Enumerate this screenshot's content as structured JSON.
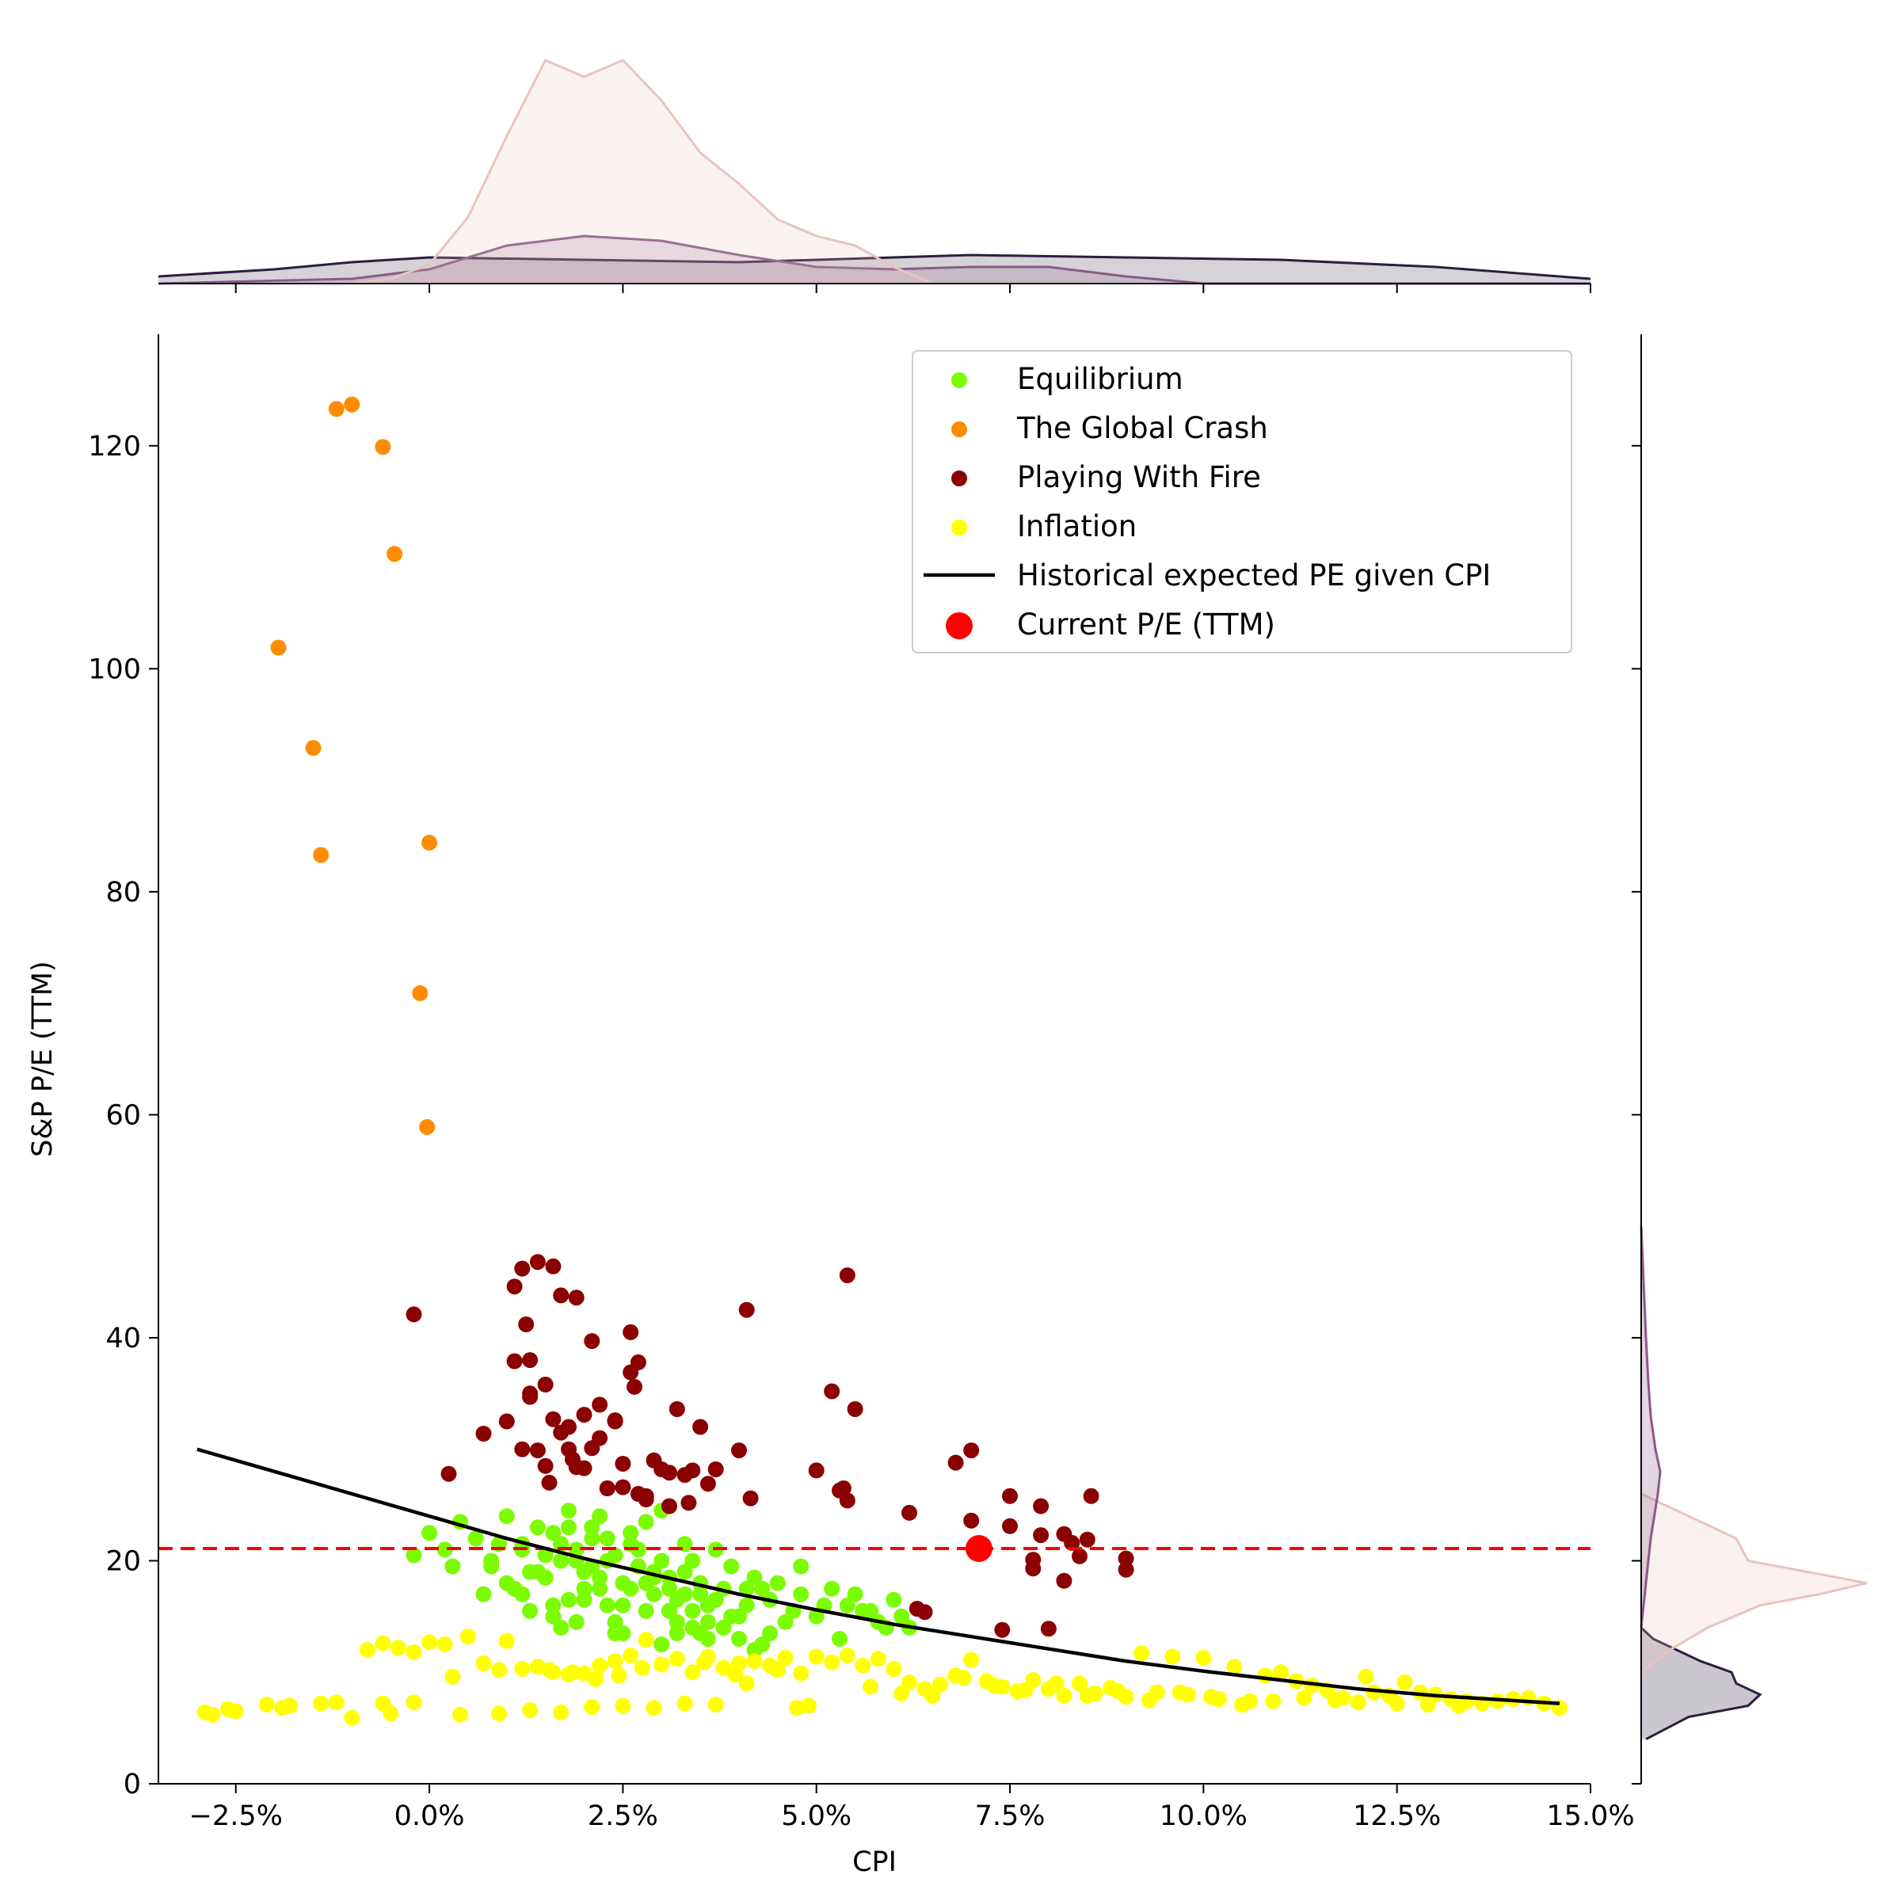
{
  "chart_data": {
    "type": "scatter",
    "xlabel": "CPI",
    "ylabel": "S&P P/E (TTM)",
    "xlim": [
      -0.035,
      0.15
    ],
    "ylim": [
      0,
      130
    ],
    "x_ticks": [
      -0.025,
      0.0,
      0.025,
      0.05,
      0.075,
      0.1,
      0.125,
      0.15
    ],
    "x_tick_labels": [
      "−2.5%",
      "0.0%",
      "2.5%",
      "5.0%",
      "7.5%",
      "10.0%",
      "12.5%",
      "15.0%"
    ],
    "y_ticks": [
      0,
      20,
      40,
      60,
      80,
      100,
      120
    ],
    "y_tick_labels": [
      "0",
      "20",
      "40",
      "60",
      "80",
      "100",
      "120"
    ],
    "legend_position": "top-right",
    "current_pe": {
      "label": "Current P/E (TTM)",
      "cpi": 0.071,
      "pe": 21.1,
      "color": "#ff0000"
    },
    "expected_curve": {
      "label": "Historical expected PE given CPI",
      "color": "#000000",
      "x": [
        -0.03,
        -0.02,
        -0.01,
        0.0,
        0.01,
        0.02,
        0.03,
        0.04,
        0.05,
        0.06,
        0.07,
        0.08,
        0.09,
        0.1,
        0.11,
        0.12,
        0.13,
        0.146
      ],
      "y": [
        30.0,
        28.0,
        26.0,
        24.0,
        22.0,
        20.2,
        18.6,
        17.0,
        15.6,
        14.3,
        13.2,
        12.1,
        11.0,
        10.1,
        9.3,
        8.5,
        7.9,
        7.2
      ]
    },
    "series": [
      {
        "name": "Equilibrium",
        "color": "#7cfc00",
        "x": [
          0.0,
          0.002,
          0.004,
          0.006,
          0.008,
          0.01,
          0.012,
          0.014,
          0.015,
          0.016,
          0.017,
          0.018,
          0.019,
          0.02,
          0.021,
          0.022,
          0.023,
          0.024,
          0.025,
          0.026,
          0.027,
          0.028,
          0.029,
          0.03,
          0.031,
          0.032,
          0.033,
          0.034,
          0.035,
          0.036,
          0.038,
          0.04,
          0.042,
          0.044,
          0.046,
          0.048,
          0.05,
          0.052,
          0.054,
          0.056,
          0.058,
          0.06,
          0.062,
          0.012,
          0.015,
          0.018,
          0.022,
          0.025,
          0.028,
          0.032,
          0.035,
          0.038,
          0.041,
          0.044,
          0.047,
          0.014,
          0.017,
          0.02,
          0.023,
          0.026,
          0.029,
          0.031,
          0.034,
          0.037,
          0.04,
          0.043,
          0.01,
          0.013,
          0.016,
          0.019,
          0.021,
          0.024,
          0.027,
          0.03,
          0.033,
          0.036,
          0.039,
          0.042,
          0.045,
          -0.002,
          0.003,
          0.007,
          0.009,
          0.011,
          0.013,
          0.016,
          0.018,
          0.02,
          0.022,
          0.024,
          0.026,
          0.028,
          0.03,
          0.032,
          0.034,
          0.036,
          0.048,
          0.051,
          0.053,
          0.055,
          0.057,
          0.059,
          0.061,
          0.015,
          0.019,
          0.023,
          0.027,
          0.031,
          0.035,
          0.039,
          0.043,
          0.008,
          0.012,
          0.017,
          0.021,
          0.025,
          0.029,
          0.033,
          0.037,
          0.041
        ],
        "y": [
          22.5,
          21.0,
          23.5,
          22.0,
          19.5,
          24.0,
          21.5,
          23.0,
          18.5,
          22.5,
          20.0,
          24.5,
          21.0,
          19.0,
          23.0,
          17.5,
          22.0,
          20.5,
          18.0,
          21.5,
          19.5,
          23.5,
          17.0,
          20.0,
          18.5,
          16.5,
          19.0,
          15.5,
          18.0,
          16.0,
          17.5,
          15.0,
          18.5,
          16.5,
          14.5,
          17.0,
          15.0,
          17.5,
          16.0,
          15.5,
          14.5,
          16.5,
          14.0,
          17.0,
          20.5,
          16.5,
          18.5,
          16.0,
          18.0,
          14.5,
          17.0,
          14.0,
          16.0,
          13.5,
          15.5,
          19.0,
          21.5,
          17.5,
          20.0,
          17.5,
          19.0,
          15.5,
          14.0,
          16.5,
          13.0,
          17.5,
          18.0,
          15.5,
          16.0,
          14.5,
          22.0,
          13.5,
          21.0,
          12.5,
          21.5,
          13.0,
          19.5,
          12.0,
          18.0,
          20.5,
          19.5,
          17.0,
          21.5,
          17.5,
          19.0,
          15.0,
          23.0,
          16.5,
          24.0,
          14.5,
          22.5,
          15.5,
          24.5,
          13.5,
          20.0,
          14.5,
          19.5,
          16.0,
          13.0,
          17.0,
          15.5,
          14.0,
          15.0,
          18.5,
          20.0,
          16.0,
          19.5,
          17.5,
          13.5,
          15.0,
          12.5,
          20.0,
          21.0,
          14.0,
          19.5,
          13.5,
          18.5,
          17.0,
          21.0,
          17.5
        ]
      },
      {
        "name": "The Global Crash",
        "color": "#ff8c00",
        "x": [
          -0.012,
          -0.01,
          -0.006,
          -0.0045,
          -0.0195,
          -0.015,
          -0.014,
          0.0,
          -0.0012,
          -0.0003
        ],
        "y": [
          123.3,
          123.7,
          119.9,
          110.3,
          101.9,
          92.9,
          83.3,
          84.4,
          70.9,
          58.9
        ]
      },
      {
        "name": "Playing With Fire",
        "color": "#8b0000",
        "x": [
          -0.002,
          0.0025,
          0.007,
          0.01,
          0.011,
          0.012,
          0.013,
          0.013,
          0.014,
          0.015,
          0.016,
          0.017,
          0.018,
          0.019,
          0.02,
          0.021,
          0.022,
          0.023,
          0.024,
          0.025,
          0.026,
          0.026,
          0.027,
          0.028,
          0.03,
          0.031,
          0.032,
          0.033,
          0.035,
          0.036,
          0.037,
          0.04,
          0.041,
          0.0415,
          0.05,
          0.052,
          0.053,
          0.054,
          0.055,
          0.062,
          0.063,
          0.064,
          0.068,
          0.07,
          0.07,
          0.074,
          0.075,
          0.075,
          0.078,
          0.078,
          0.079,
          0.079,
          0.08,
          0.082,
          0.082,
          0.083,
          0.084,
          0.085,
          0.0855,
          0.09,
          0.09,
          0.012,
          0.014,
          0.016,
          0.018,
          0.02,
          0.022,
          0.024,
          0.027,
          0.029,
          0.031,
          0.034,
          0.011,
          0.013,
          0.015,
          0.017,
          0.019,
          0.021,
          0.023,
          0.025,
          0.028,
          0.0125,
          0.0155,
          0.0185,
          0.0265,
          0.0335,
          0.0535,
          0.054
        ],
        "y": [
          42.1,
          27.8,
          31.4,
          32.5,
          44.6,
          46.2,
          38.0,
          34.7,
          46.8,
          28.5,
          46.4,
          43.8,
          32.0,
          43.6,
          33.1,
          39.7,
          31.0,
          26.5,
          32.5,
          28.7,
          40.5,
          36.9,
          37.8,
          25.8,
          28.2,
          24.9,
          33.6,
          27.7,
          32.0,
          26.9,
          28.2,
          29.9,
          42.5,
          25.6,
          28.1,
          35.2,
          26.3,
          45.6,
          33.6,
          24.3,
          15.7,
          15.4,
          28.8,
          29.9,
          23.6,
          13.8,
          25.8,
          23.1,
          20.1,
          19.3,
          24.9,
          22.3,
          13.9,
          22.4,
          18.2,
          21.6,
          20.4,
          21.9,
          25.8,
          20.2,
          19.2,
          30.0,
          29.9,
          32.7,
          30.0,
          28.3,
          34.0,
          32.6,
          26.0,
          29.0,
          27.9,
          28.1,
          37.9,
          35.0,
          35.8,
          31.5,
          28.4,
          30.1,
          26.5,
          26.6,
          25.5,
          41.2,
          27.0,
          29.1,
          35.6,
          25.2,
          26.5,
          25.4
        ]
      },
      {
        "name": "Inflation",
        "color": "#ffff00",
        "x": [
          -0.029,
          -0.028,
          -0.026,
          -0.025,
          -0.021,
          -0.019,
          -0.018,
          -0.014,
          -0.012,
          -0.01,
          -0.006,
          -0.005,
          -0.002,
          -0.008,
          -0.006,
          -0.004,
          -0.002,
          0.0,
          0.002,
          0.003,
          0.005,
          0.007,
          0.009,
          0.01,
          0.012,
          0.014,
          0.016,
          0.018,
          0.02,
          0.022,
          0.024,
          0.026,
          0.028,
          0.03,
          0.032,
          0.034,
          0.036,
          0.038,
          0.04,
          0.042,
          0.044,
          0.046,
          0.048,
          0.05,
          0.052,
          0.054,
          0.056,
          0.058,
          0.06,
          0.062,
          0.064,
          0.066,
          0.068,
          0.07,
          0.072,
          0.074,
          0.076,
          0.078,
          0.08,
          0.082,
          0.084,
          0.086,
          0.088,
          0.09,
          0.092,
          0.094,
          0.096,
          0.098,
          0.1,
          0.102,
          0.104,
          0.106,
          0.108,
          0.11,
          0.112,
          0.114,
          0.116,
          0.118,
          0.12,
          0.122,
          0.124,
          0.126,
          0.128,
          0.13,
          0.132,
          0.134,
          0.136,
          0.138,
          0.14,
          0.142,
          0.144,
          0.146,
          0.004,
          0.009,
          0.013,
          0.017,
          0.021,
          0.025,
          0.029,
          0.033,
          0.037,
          0.041,
          0.045,
          0.049,
          0.057,
          0.061,
          0.065,
          0.069,
          0.073,
          0.077,
          0.081,
          0.085,
          0.089,
          0.093,
          0.097,
          0.101,
          0.105,
          0.109,
          0.113,
          0.117,
          0.121,
          0.125,
          0.129,
          0.133,
          0.0155,
          0.0185,
          0.0215,
          0.0245,
          0.0275,
          0.0355,
          0.0475,
          0.0395
        ],
        "y": [
          6.4,
          6.2,
          6.7,
          6.5,
          7.1,
          6.8,
          7.0,
          7.2,
          7.3,
          5.9,
          7.2,
          6.3,
          7.3,
          12.0,
          12.6,
          12.2,
          11.8,
          12.7,
          12.5,
          9.6,
          13.2,
          10.8,
          10.2,
          12.8,
          10.3,
          10.5,
          10.0,
          9.8,
          9.9,
          10.6,
          11.0,
          11.5,
          12.9,
          10.7,
          11.2,
          10.0,
          11.4,
          10.4,
          10.8,
          11.0,
          10.6,
          11.3,
          9.9,
          11.4,
          10.9,
          11.5,
          10.6,
          11.2,
          10.3,
          9.1,
          8.5,
          8.9,
          9.7,
          11.1,
          9.2,
          8.7,
          8.3,
          9.3,
          8.5,
          7.9,
          9.0,
          8.1,
          8.6,
          7.8,
          11.7,
          8.2,
          11.4,
          8.0,
          11.3,
          7.6,
          10.5,
          7.4,
          9.7,
          10.0,
          9.2,
          8.8,
          8.4,
          7.7,
          7.3,
          8.2,
          7.9,
          9.1,
          8.2,
          8.0,
          7.6,
          7.4,
          7.2,
          7.4,
          7.6,
          7.7,
          7.2,
          6.8,
          6.2,
          6.3,
          6.6,
          6.4,
          6.9,
          7.0,
          6.8,
          7.2,
          7.1,
          9.0,
          10.2,
          7.0,
          8.7,
          8.1,
          7.9,
          9.5,
          8.8,
          8.4,
          9.0,
          7.9,
          8.3,
          7.5,
          8.2,
          7.8,
          7.1,
          7.4,
          7.7,
          7.5,
          9.6,
          7.2,
          7.1,
          7.0,
          10.2,
          10.0,
          9.4,
          9.7,
          10.4,
          10.9,
          6.8,
          9.8
        ]
      }
    ],
    "marginal_top": {
      "series": [
        {
          "name": "The Global Crash",
          "color": "#2d1e3e",
          "x": [
            -0.035,
            -0.02,
            -0.01,
            0.0,
            0.02,
            0.04,
            0.06,
            0.07,
            0.09,
            0.11,
            0.13,
            0.15
          ],
          "density": [
            0.03,
            0.06,
            0.09,
            0.11,
            0.1,
            0.09,
            0.11,
            0.12,
            0.11,
            0.1,
            0.07,
            0.02
          ]
        },
        {
          "name": "Playing With Fire",
          "color": "#8a5a87",
          "x": [
            -0.035,
            -0.01,
            0.0,
            0.01,
            0.02,
            0.03,
            0.04,
            0.05,
            0.06,
            0.07,
            0.08,
            0.09,
            0.1,
            0.15
          ],
          "density": [
            0.0,
            0.02,
            0.06,
            0.16,
            0.2,
            0.18,
            0.12,
            0.07,
            0.06,
            0.07,
            0.07,
            0.03,
            0.0,
            0.0
          ]
        },
        {
          "name": "Equilibrium",
          "color": "#e8c4c0",
          "x": [
            -0.01,
            -0.005,
            0.0,
            0.005,
            0.01,
            0.015,
            0.02,
            0.025,
            0.03,
            0.035,
            0.04,
            0.045,
            0.05,
            0.055,
            0.06,
            0.065
          ],
          "density": [
            0.0,
            0.02,
            0.08,
            0.28,
            0.62,
            0.94,
            0.87,
            0.94,
            0.77,
            0.55,
            0.42,
            0.27,
            0.2,
            0.16,
            0.07,
            0.0
          ]
        }
      ]
    },
    "marginal_right": {
      "series": [
        {
          "name": "Inflation",
          "color": "#2d1e3e",
          "y": [
            4,
            6,
            7,
            8,
            9,
            10,
            11,
            12,
            13,
            14
          ],
          "density": [
            0.02,
            0.2,
            0.45,
            0.5,
            0.4,
            0.38,
            0.25,
            0.15,
            0.05,
            0.0
          ]
        },
        {
          "name": "Equilibrium",
          "color": "#e8c4c0",
          "y": [
            10,
            12,
            14,
            16,
            17,
            18,
            19,
            20,
            22,
            24,
            25,
            26
          ],
          "density": [
            0.0,
            0.12,
            0.28,
            0.5,
            0.75,
            0.95,
            0.7,
            0.45,
            0.4,
            0.2,
            0.1,
            0.0
          ]
        },
        {
          "name": "Playing With Fire",
          "color": "#8a5a87",
          "y": [
            14,
            18,
            22,
            26,
            28,
            30,
            33,
            36,
            40,
            45,
            50
          ],
          "density": [
            0.0,
            0.02,
            0.04,
            0.07,
            0.08,
            0.06,
            0.04,
            0.03,
            0.02,
            0.01,
            0.0
          ]
        }
      ]
    }
  }
}
